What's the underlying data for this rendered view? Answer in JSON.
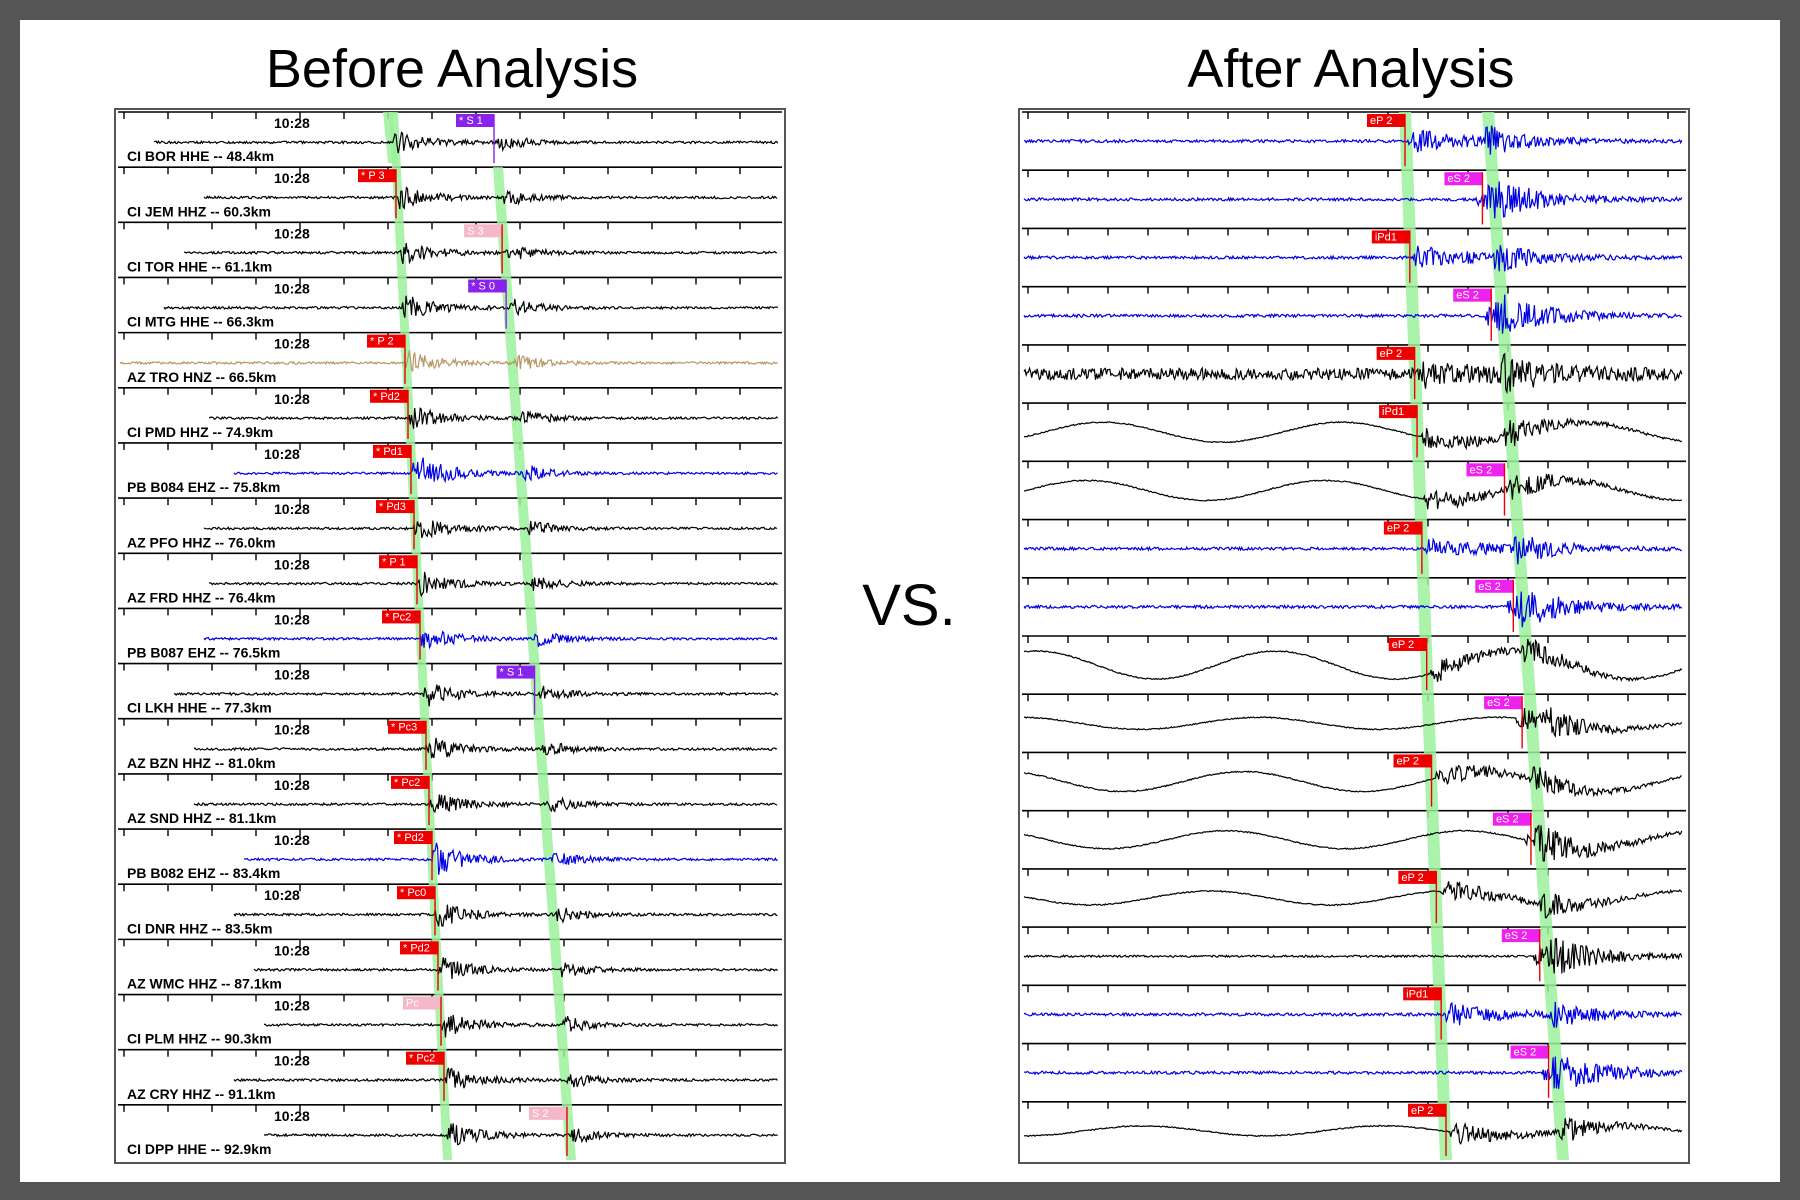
{
  "titles": {
    "before": "Before Analysis",
    "after": "After Analysis",
    "vs": "VS."
  },
  "colors": {
    "black": "#000000",
    "blue": "#0000e0",
    "tan": "#b8976a",
    "green": "#9cf09c",
    "red": "#ee0000",
    "purple": "#8a22ee",
    "magenta": "#ee22ee",
    "pink": "#f4b8c8"
  },
  "before": {
    "time_label": "10:28",
    "traces": [
      {
        "label": "CI BOR HHE -- 48.4km",
        "color": "black",
        "pick": "* S 1",
        "pick_kind": "purple"
      },
      {
        "label": "CI JEM HHZ -- 60.3km",
        "color": "black",
        "pick": "* P 3",
        "pick_kind": "red"
      },
      {
        "label": "CI TOR HHE -- 61.1km",
        "color": "black",
        "pick": "S 3",
        "pick_kind": "pink"
      },
      {
        "label": "CI MTG HHE -- 66.3km",
        "color": "black",
        "pick": "* S 0",
        "pick_kind": "purple"
      },
      {
        "label": "AZ TRO HNZ -- 66.5km",
        "color": "tan",
        "pick": "* P 2",
        "pick_kind": "red"
      },
      {
        "label": "CI PMD HHZ -- 74.9km",
        "color": "black",
        "pick": "* Pd2",
        "pick_kind": "red"
      },
      {
        "label": "PB B084 EHZ -- 75.8km",
        "color": "blue",
        "pick": "* Pd1",
        "pick_kind": "red"
      },
      {
        "label": "AZ PFO HHZ -- 76.0km",
        "color": "black",
        "pick": "* Pd3",
        "pick_kind": "red"
      },
      {
        "label": "AZ FRD HHZ -- 76.4km",
        "color": "black",
        "pick": "* P 1",
        "pick_kind": "red"
      },
      {
        "label": "PB B087 EHZ -- 76.5km",
        "color": "blue",
        "pick": "* Pc2",
        "pick_kind": "red"
      },
      {
        "label": "CI LKH HHE -- 77.3km",
        "color": "black",
        "pick": "* S 1",
        "pick_kind": "purple"
      },
      {
        "label": "AZ BZN HHZ -- 81.0km",
        "color": "black",
        "pick": "* Pc3",
        "pick_kind": "red"
      },
      {
        "label": "AZ SND HHZ -- 81.1km",
        "color": "black",
        "pick": "* Pc2",
        "pick_kind": "red"
      },
      {
        "label": "PB B082 EHZ -- 83.4km",
        "color": "blue",
        "pick": "* Pd2",
        "pick_kind": "red"
      },
      {
        "label": "CI DNR HHZ -- 83.5km",
        "color": "black",
        "pick": "* Pc0",
        "pick_kind": "red"
      },
      {
        "label": "AZ WMC HHZ -- 87.1km",
        "color": "black",
        "pick": "* Pd2",
        "pick_kind": "red"
      },
      {
        "label": "CI PLM HHZ -- 90.3km",
        "color": "black",
        "pick": "Pc",
        "pick_kind": "pink"
      },
      {
        "label": "AZ CRY HHZ -- 91.1km",
        "color": "black",
        "pick": "* Pc2",
        "pick_kind": "red"
      },
      {
        "label": "CI DPP HHE -- 92.9km",
        "color": "black",
        "pick": "S 2",
        "pick_kind": "pink"
      }
    ]
  },
  "after": {
    "traces": [
      {
        "color": "blue",
        "pick": "eP 2",
        "pick_kind": "red"
      },
      {
        "color": "blue",
        "pick": "eS 2",
        "pick_kind": "magenta"
      },
      {
        "color": "blue",
        "pick": "iPd1",
        "pick_kind": "red"
      },
      {
        "color": "blue",
        "pick": "eS 2",
        "pick_kind": "magenta"
      },
      {
        "color": "black",
        "pick": "eP 2",
        "pick_kind": "red"
      },
      {
        "color": "black",
        "pick": "iPd1",
        "pick_kind": "red"
      },
      {
        "color": "black",
        "pick": "eS 2",
        "pick_kind": "magenta"
      },
      {
        "color": "blue",
        "pick": "eP 2",
        "pick_kind": "red"
      },
      {
        "color": "blue",
        "pick": "eS 2",
        "pick_kind": "magenta"
      },
      {
        "color": "black",
        "pick": "eP 2",
        "pick_kind": "red"
      },
      {
        "color": "black",
        "pick": "eS 2",
        "pick_kind": "magenta"
      },
      {
        "color": "black",
        "pick": "eP 2",
        "pick_kind": "red"
      },
      {
        "color": "black",
        "pick": "eS 2",
        "pick_kind": "magenta"
      },
      {
        "color": "black",
        "pick": "eP 2",
        "pick_kind": "red"
      },
      {
        "color": "black",
        "pick": "eS 2",
        "pick_kind": "magenta"
      },
      {
        "color": "blue",
        "pick": "iPd1",
        "pick_kind": "red"
      },
      {
        "color": "blue",
        "pick": "eS 2",
        "pick_kind": "magenta"
      },
      {
        "color": "black",
        "pick": "eP 2",
        "pick_kind": "red"
      }
    ]
  }
}
